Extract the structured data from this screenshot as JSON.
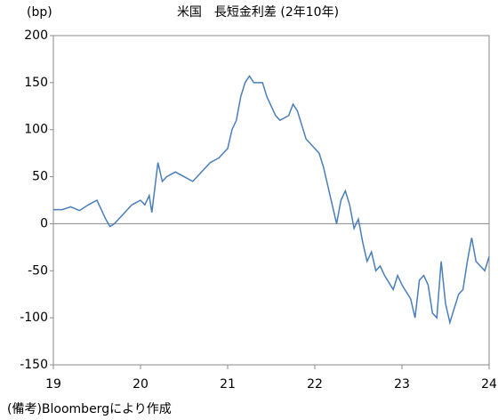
{
  "chart_data": {
    "type": "line",
    "title": "米国　長短金利差 (2年10年)",
    "y_label": "(bp)",
    "note": "(備考)Bloombergにより作成",
    "x": [
      19.0,
      19.1,
      19.2,
      19.3,
      19.4,
      19.5,
      19.55,
      19.6,
      19.65,
      19.7,
      19.8,
      19.9,
      20.0,
      20.05,
      20.1,
      20.13,
      20.2,
      20.25,
      20.3,
      20.4,
      20.5,
      20.6,
      20.7,
      20.8,
      20.9,
      21.0,
      21.05,
      21.1,
      21.15,
      21.2,
      21.25,
      21.3,
      21.4,
      21.45,
      21.5,
      21.55,
      21.6,
      21.7,
      21.75,
      21.8,
      21.85,
      21.9,
      22.0,
      22.05,
      22.1,
      22.15,
      22.2,
      22.25,
      22.3,
      22.35,
      22.4,
      22.45,
      22.5,
      22.55,
      22.6,
      22.65,
      22.7,
      22.75,
      22.8,
      22.9,
      22.95,
      23.0,
      23.1,
      23.15,
      23.2,
      23.25,
      23.3,
      23.35,
      23.4,
      23.45,
      23.5,
      23.55,
      23.6,
      23.65,
      23.7,
      23.75,
      23.8,
      23.85,
      23.9,
      23.95,
      24.0
    ],
    "series": [
      {
        "color": "#4a7ebb",
        "values": [
          15,
          15,
          18,
          14,
          20,
          25,
          15,
          5,
          -3,
          0,
          10,
          20,
          25,
          20,
          30,
          12,
          65,
          45,
          50,
          55,
          50,
          45,
          55,
          65,
          70,
          80,
          100,
          110,
          135,
          150,
          157,
          150,
          150,
          135,
          125,
          115,
          110,
          115,
          127,
          120,
          105,
          90,
          80,
          75,
          60,
          40,
          20,
          0,
          25,
          35,
          20,
          -5,
          5,
          -20,
          -40,
          -30,
          -50,
          -45,
          -55,
          -70,
          -55,
          -65,
          -80,
          -100,
          -60,
          -55,
          -65,
          -95,
          -100,
          -40,
          -85,
          -105,
          -90,
          -75,
          -70,
          -40,
          -15,
          -40,
          -45,
          -50,
          -35
        ]
      }
    ],
    "xlim": [
      19,
      24
    ],
    "xticks": [
      19,
      20,
      21,
      22,
      23,
      24
    ],
    "ylim": [
      -150,
      200
    ],
    "yticks": [
      -150,
      -100,
      -50,
      0,
      50,
      100,
      150,
      200
    ]
  }
}
